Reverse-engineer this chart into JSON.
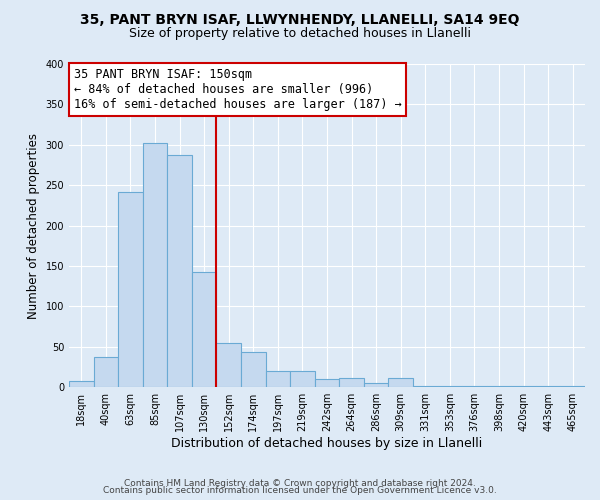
{
  "title": "35, PANT BRYN ISAF, LLWYNHENDY, LLANELLI, SA14 9EQ",
  "subtitle": "Size of property relative to detached houses in Llanelli",
  "xlabel": "Distribution of detached houses by size in Llanelli",
  "ylabel": "Number of detached properties",
  "bar_labels": [
    "18sqm",
    "40sqm",
    "63sqm",
    "85sqm",
    "107sqm",
    "130sqm",
    "152sqm",
    "174sqm",
    "197sqm",
    "219sqm",
    "242sqm",
    "264sqm",
    "286sqm",
    "309sqm",
    "331sqm",
    "353sqm",
    "376sqm",
    "398sqm",
    "420sqm",
    "443sqm",
    "465sqm"
  ],
  "bar_heights": [
    8,
    37,
    242,
    302,
    287,
    142,
    55,
    43,
    20,
    20,
    10,
    12,
    5,
    12,
    2,
    2,
    1,
    1,
    1,
    1,
    1
  ],
  "bar_color": "#c5d9ef",
  "bar_edge_color": "#6aaad4",
  "vline_color": "#cc0000",
  "annotation_title": "35 PANT BRYN ISAF: 150sqm",
  "annotation_line1": "← 84% of detached houses are smaller (996)",
  "annotation_line2": "16% of semi-detached houses are larger (187) →",
  "annotation_box_color": "#ffffff",
  "annotation_box_edge": "#cc0000",
  "ylim": [
    0,
    400
  ],
  "yticks": [
    0,
    50,
    100,
    150,
    200,
    250,
    300,
    350,
    400
  ],
  "footer1": "Contains HM Land Registry data © Crown copyright and database right 2024.",
  "footer2": "Contains public sector information licensed under the Open Government Licence v3.0.",
  "bg_color": "#deeaf6",
  "plot_bg_color": "#deeaf6",
  "title_fontsize": 10,
  "subtitle_fontsize": 9,
  "xlabel_fontsize": 9,
  "ylabel_fontsize": 8.5,
  "tick_fontsize": 7,
  "footer_fontsize": 6.5,
  "annot_fontsize": 8.5
}
